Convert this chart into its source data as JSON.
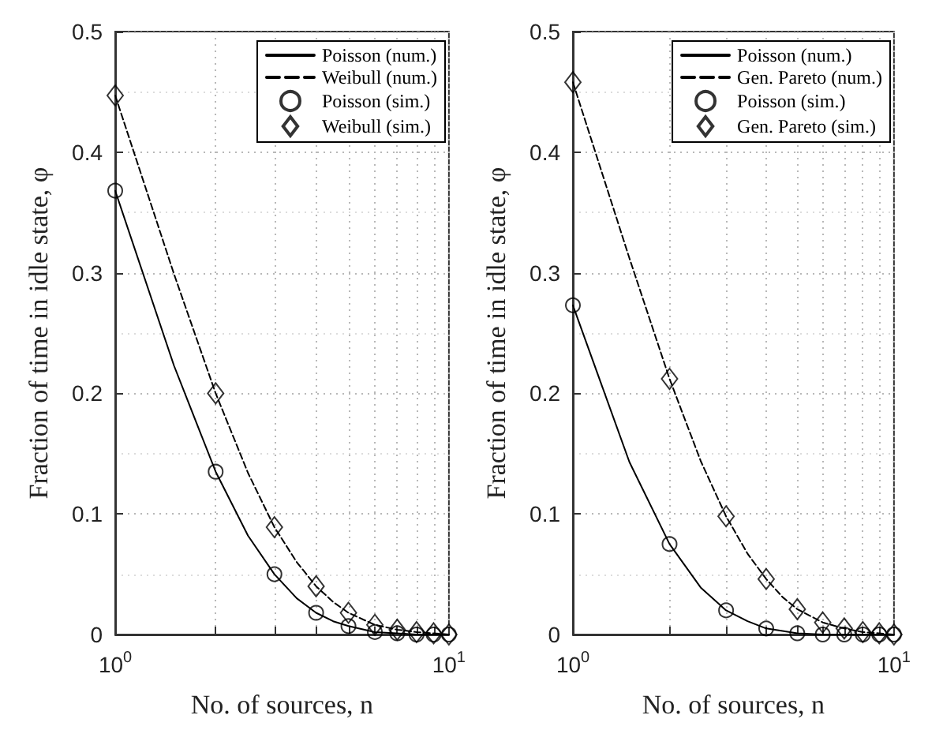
{
  "chart_data": [
    {
      "type": "line",
      "xlabel": "No. of sources, n",
      "ylabel": "Fraction of time in idle state, φ",
      "log": "x",
      "xlim": [
        1,
        10
      ],
      "ylim": [
        0,
        0.5
      ],
      "xticks": [
        {
          "value": 1,
          "label": "10$^{0}$"
        },
        {
          "value": 2,
          "label": null
        },
        {
          "value": 3,
          "label": null
        },
        {
          "value": 4,
          "label": null
        },
        {
          "value": 5,
          "label": null
        },
        {
          "value": 6,
          "label": null
        },
        {
          "value": 7,
          "label": null
        },
        {
          "value": 8,
          "label": null
        },
        {
          "value": 9,
          "label": null
        },
        {
          "value": 10,
          "label": "10$^{1}$"
        }
      ],
      "yticks": [
        0,
        0.1,
        0.2,
        0.3,
        0.4,
        0.5
      ],
      "grid": true,
      "legend": "top right",
      "series": [
        {
          "name": "Poisson (num.)",
          "type": "line",
          "color": "#000000",
          "line_style": "solid",
          "marker": "none",
          "x": [
            1,
            1.5,
            2,
            2.5,
            3,
            3.5,
            4,
            4.5,
            5,
            6,
            7,
            8,
            9,
            10
          ],
          "values": [
            0.368,
            0.223,
            0.135,
            0.082,
            0.05,
            0.03,
            0.018,
            0.011,
            0.007,
            0.002,
            0.001,
            0,
            0,
            0
          ]
        },
        {
          "name": "Weibull (num.)",
          "type": "line",
          "color": "#000000",
          "line_style": "dashed",
          "marker": "none",
          "x": [
            1,
            1.5,
            2,
            2.5,
            3,
            3.5,
            4,
            4.5,
            5,
            6,
            7,
            8,
            9,
            10
          ],
          "values": [
            0.447,
            0.299,
            0.2,
            0.134,
            0.089,
            0.06,
            0.04,
            0.027,
            0.018,
            0.008,
            0.004,
            0.002,
            0.001,
            0
          ]
        },
        {
          "name": "Poisson (sim.)",
          "type": "scatter",
          "color": "#000000",
          "marker": "circle",
          "x": [
            1,
            2,
            3,
            4,
            5,
            6,
            7,
            8,
            9,
            10
          ],
          "values": [
            0.368,
            0.135,
            0.05,
            0.018,
            0.007,
            0.002,
            0.001,
            0,
            0,
            0
          ]
        },
        {
          "name": "Weibull (sim.)",
          "type": "scatter",
          "color": "#000000",
          "marker": "diamond",
          "x": [
            1,
            2,
            3,
            4,
            5,
            6,
            7,
            8,
            9,
            10
          ],
          "values": [
            0.447,
            0.2,
            0.089,
            0.04,
            0.018,
            0.008,
            0.004,
            0.002,
            0.001,
            0
          ]
        }
      ]
    },
    {
      "type": "line",
      "xlabel": "No. of sources, n",
      "ylabel": "Fraction of time in idle state, φ",
      "log": "x",
      "xlim": [
        1,
        10
      ],
      "ylim": [
        0,
        0.5
      ],
      "xticks": [
        {
          "value": 1,
          "label": "10$^{0}$"
        },
        {
          "value": 2,
          "label": null
        },
        {
          "value": 3,
          "label": null
        },
        {
          "value": 4,
          "label": null
        },
        {
          "value": 5,
          "label": null
        },
        {
          "value": 6,
          "label": null
        },
        {
          "value": 7,
          "label": null
        },
        {
          "value": 8,
          "label": null
        },
        {
          "value": 9,
          "label": null
        },
        {
          "value": 10,
          "label": "10$^{1}$"
        }
      ],
      "yticks": [
        0,
        0.1,
        0.2,
        0.3,
        0.4,
        0.5
      ],
      "grid": true,
      "legend": "top right",
      "series": [
        {
          "name": "Poisson (num.)",
          "type": "line",
          "color": "#000000",
          "line_style": "solid",
          "marker": "none",
          "x": [
            1,
            1.5,
            2,
            2.5,
            3,
            3.5,
            4,
            4.5,
            5,
            6,
            7,
            8,
            9,
            10
          ],
          "values": [
            0.273,
            0.143,
            0.075,
            0.039,
            0.02,
            0.011,
            0.005,
            0.003,
            0.001,
            0,
            0,
            0,
            0,
            0
          ]
        },
        {
          "name": "Gen. Pareto (num.)",
          "type": "line",
          "color": "#000000",
          "line_style": "dashed",
          "marker": "none",
          "x": [
            1,
            1.5,
            2,
            2.5,
            3,
            3.5,
            4,
            4.5,
            5,
            6,
            7,
            8,
            9,
            10
          ],
          "values": [
            0.458,
            0.312,
            0.212,
            0.144,
            0.098,
            0.067,
            0.046,
            0.031,
            0.021,
            0.01,
            0.005,
            0.002,
            0.001,
            0
          ]
        },
        {
          "name": "Poisson (sim.)",
          "type": "scatter",
          "color": "#000000",
          "marker": "circle",
          "x": [
            1,
            2,
            3,
            4,
            5,
            6,
            7,
            8,
            9,
            10
          ],
          "values": [
            0.273,
            0.075,
            0.02,
            0.005,
            0.001,
            0,
            0,
            0,
            0,
            0
          ]
        },
        {
          "name": "Gen. Pareto (sim.)",
          "type": "scatter",
          "color": "#000000",
          "marker": "diamond",
          "x": [
            1,
            2,
            3,
            4,
            5,
            6,
            7,
            8,
            9,
            10
          ],
          "values": [
            0.458,
            0.212,
            0.098,
            0.046,
            0.021,
            0.01,
            0.005,
            0.002,
            0.001,
            0
          ]
        }
      ]
    }
  ]
}
